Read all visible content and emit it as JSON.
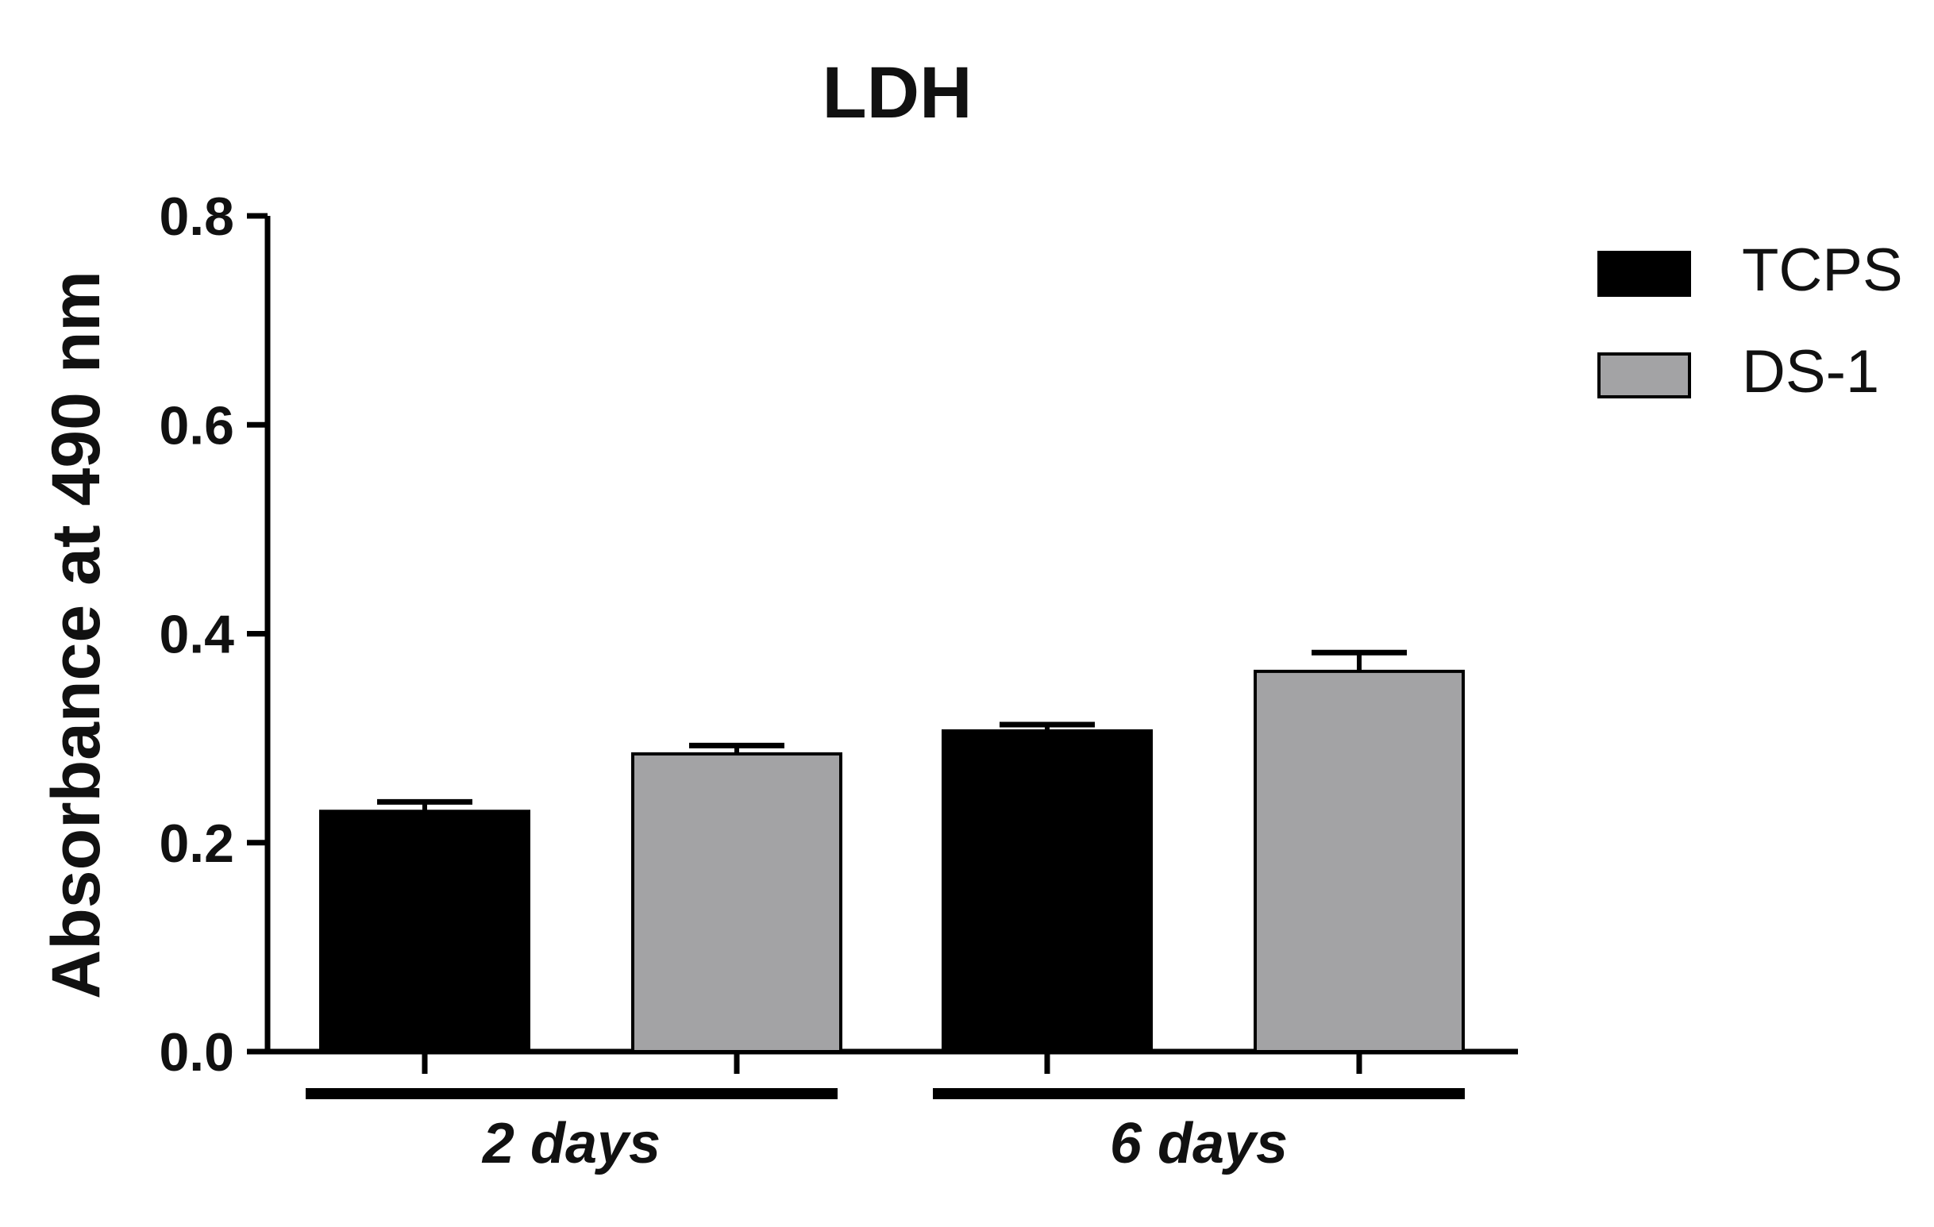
{
  "chart_data": {
    "type": "bar",
    "title": "LDH",
    "xlabel": "",
    "ylabel": "Absorbance at 490 nm",
    "ylim": [
      0,
      0.8
    ],
    "yticks": [
      "0.0",
      "0.2",
      "0.4",
      "0.6",
      "0.8"
    ],
    "categories": [
      "2 days",
      "6 days"
    ],
    "grid": false,
    "legend_position": "top-right",
    "series": [
      {
        "name": "TCPS",
        "color": "#000000",
        "values": [
          0.23,
          0.307
        ],
        "errors": [
          0.009,
          0.006
        ]
      },
      {
        "name": "DS-1",
        "color": "#a3a3a5",
        "values": [
          0.285,
          0.364
        ],
        "errors": [
          0.008,
          0.018
        ]
      }
    ]
  }
}
